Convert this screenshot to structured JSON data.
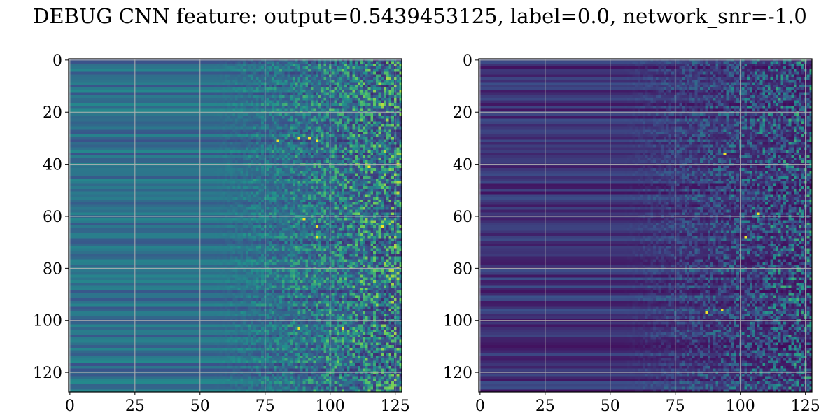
{
  "figure": {
    "title": "DEBUG CNN feature: output=0.5439453125, label=0.0, network_snr=-1.0"
  },
  "colormap": {
    "name": "viridis",
    "stops": [
      "#440154",
      "#3b528b",
      "#21918c",
      "#5ec962",
      "#fde725"
    ]
  },
  "chart_data": [
    {
      "type": "heatmap",
      "title": "",
      "xlabel": "",
      "ylabel": "",
      "xlim": [
        -0.5,
        127.5
      ],
      "ylim": [
        127.5,
        -0.5
      ],
      "shape": [
        128,
        128
      ],
      "grid": true,
      "xticks": [
        0,
        25,
        50,
        75,
        100,
        125
      ],
      "yticks": [
        0,
        20,
        40,
        60,
        80,
        100,
        120
      ],
      "description_of_values": "left columns (0-~55) smooth horizontal banding, right columns (~70-127) noisy with bright yellow speckles near rows 30, 41, 64, 103"
    },
    {
      "type": "heatmap",
      "title": "",
      "xlabel": "",
      "ylabel": "",
      "xlim": [
        -0.5,
        127.5
      ],
      "ylim": [
        127.5,
        -0.5
      ],
      "shape": [
        128,
        128
      ],
      "grid": true,
      "xticks": [
        0,
        25,
        50,
        75,
        100,
        125
      ],
      "yticks": [
        0,
        20,
        40,
        60,
        80,
        100,
        120
      ],
      "description_of_values": "mostly dark purple; right half noisy teal/green speckles; a bright yellow pixel near (107, 59)"
    }
  ]
}
